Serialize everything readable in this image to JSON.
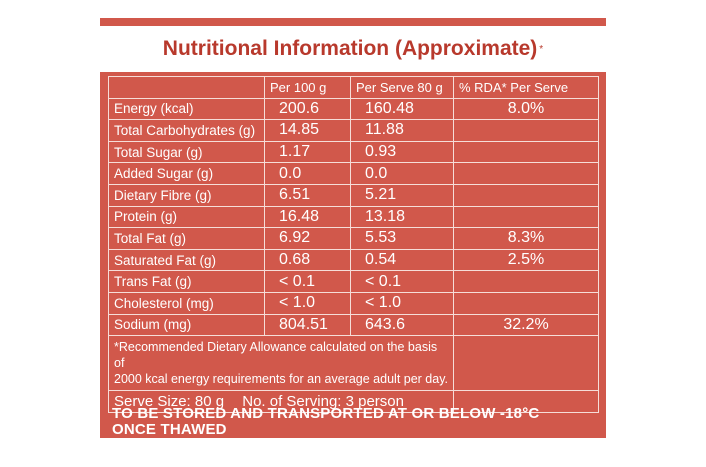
{
  "title": "Nutritional Information (Approximate)",
  "title_mark": "*",
  "headers": [
    "",
    "Per 100 g",
    "Per Serve 80 g",
    "% RDA* Per Serve"
  ],
  "rows": [
    {
      "name": "Energy (kcal)",
      "per100": "200.6",
      "perServe": "160.48",
      "rda": "8.0%"
    },
    {
      "name": "Total Carbohydrates (g)",
      "per100": "14.85",
      "perServe": "11.88",
      "rda": ""
    },
    {
      "name": "Total Sugar (g)",
      "per100": "1.17",
      "perServe": "0.93",
      "rda": ""
    },
    {
      "name": "Added Sugar (g)",
      "per100": "0.0",
      "perServe": "0.0",
      "rda": ""
    },
    {
      "name": "Dietary Fibre (g)",
      "per100": "6.51",
      "perServe": "5.21",
      "rda": ""
    },
    {
      "name": "Protein (g)",
      "per100": "16.48",
      "perServe": "13.18",
      "rda": ""
    },
    {
      "name": "Total Fat (g)",
      "per100": "6.92",
      "perServe": "5.53",
      "rda": "8.3%"
    },
    {
      "name": "Saturated Fat (g)",
      "per100": "0.68",
      "perServe": "0.54",
      "rda": "2.5%"
    },
    {
      "name": "Trans Fat (g)",
      "per100": "< 0.1",
      "perServe": "< 0.1",
      "rda": ""
    },
    {
      "name": "Cholesterol (mg)",
      "per100": "< 1.0",
      "perServe": "< 1.0",
      "rda": ""
    },
    {
      "name": "Sodium (mg)",
      "per100": "804.51",
      "perServe": "643.6",
      "rda": "32.2%"
    }
  ],
  "footnote_line1": "*Recommended Dietary Allowance calculated on the basis of",
  "footnote_line2": "2000 kcal energy requirements for an average adult per day.",
  "serve_size": "Serve Size: 80 g",
  "servings": "No. of Serving: 3 person",
  "storage_line1": "TO BE STORED AND TRANSPORTED AT OR BELOW -18°C",
  "storage_line2": "ONCE THAWED",
  "colors": {
    "background": "#d1584b",
    "title_text": "#b8392c",
    "text": "#ffffff"
  }
}
